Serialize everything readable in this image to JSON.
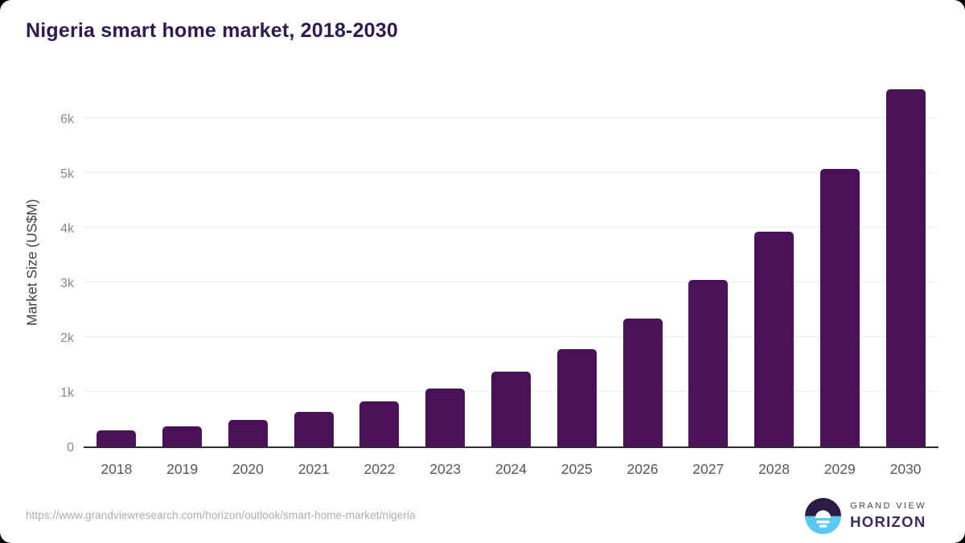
{
  "chart_data": {
    "type": "bar",
    "title": "Nigeria smart home market, 2018-2030",
    "categories": [
      "2018",
      "2019",
      "2020",
      "2021",
      "2022",
      "2023",
      "2024",
      "2025",
      "2026",
      "2027",
      "2028",
      "2029",
      "2030"
    ],
    "values": [
      290,
      375,
      490,
      630,
      830,
      1055,
      1370,
      1780,
      2340,
      3040,
      3930,
      5075,
      6540
    ],
    "ylabel": "Market Size (US$M)",
    "xlabel": "",
    "yticks": [
      0,
      1000,
      2000,
      3000,
      4000,
      5000,
      6000
    ],
    "ytick_labels": [
      "0",
      "1k",
      "2k",
      "3k",
      "4k",
      "5k",
      "6k"
    ],
    "ylim": [
      0,
      6770
    ],
    "grid": true,
    "legend": false,
    "bar_color": "#491158"
  },
  "footer": {
    "source_url": "https://www.grandviewresearch.com/horizon/outlook/smart-home-market/nigeria",
    "logo": {
      "brand_line1": "GRAND VIEW",
      "brand_line2": "HORIZON"
    }
  },
  "colors": {
    "bar": "#491158",
    "title_text": "#2e1a4e",
    "axis_line": "#2f2f2f",
    "gridline": "#ececec",
    "y_tick_label": "#8a8a8a",
    "x_tick_label": "#57575a",
    "y_axis_title": "#424242",
    "url_text": "#ababab",
    "logo_dark_purple": "#2b1c44",
    "logo_sky_blue": "#5ac8f1",
    "logo_text_purple": "#3c2d5d"
  }
}
